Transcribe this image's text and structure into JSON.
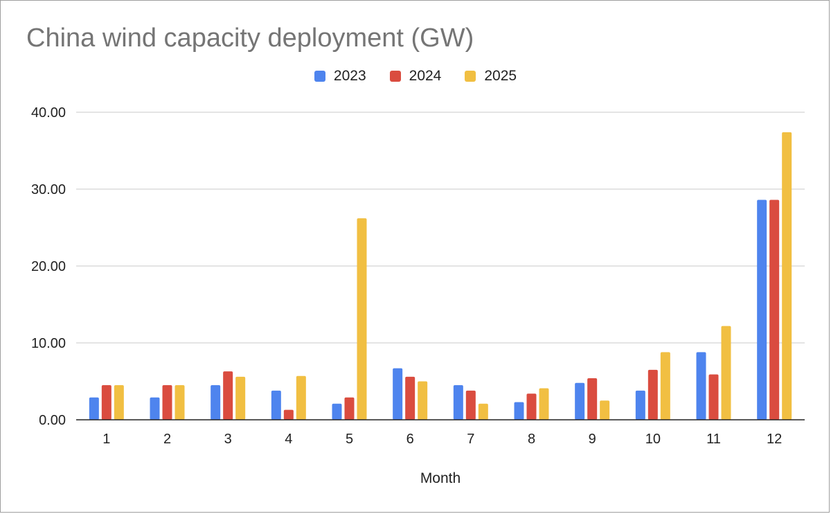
{
  "chart_data": {
    "type": "bar",
    "title": "China wind capacity deployment (GW)",
    "xlabel": "Month",
    "ylabel": "",
    "ylim": [
      0,
      40
    ],
    "yticks": [
      "0.00",
      "10.00",
      "20.00",
      "30.00",
      "40.00"
    ],
    "categories": [
      "1",
      "2",
      "3",
      "4",
      "5",
      "6",
      "7",
      "8",
      "9",
      "10",
      "11",
      "12"
    ],
    "legend_position": "top-center",
    "grid": true,
    "series": [
      {
        "name": "2023",
        "color": "#4e84ee",
        "values": [
          2.9,
          2.9,
          4.5,
          3.8,
          2.1,
          6.7,
          4.5,
          2.3,
          4.8,
          3.8,
          8.8,
          28.6
        ]
      },
      {
        "name": "2024",
        "color": "#da4c3f",
        "values": [
          4.5,
          4.5,
          6.3,
          1.3,
          2.9,
          5.6,
          3.8,
          3.4,
          5.4,
          6.5,
          5.9,
          28.6
        ]
      },
      {
        "name": "2025",
        "color": "#f1bf42",
        "values": [
          4.5,
          4.5,
          5.6,
          5.7,
          26.2,
          5.0,
          2.1,
          4.1,
          2.5,
          8.8,
          12.2,
          37.4
        ]
      }
    ]
  }
}
